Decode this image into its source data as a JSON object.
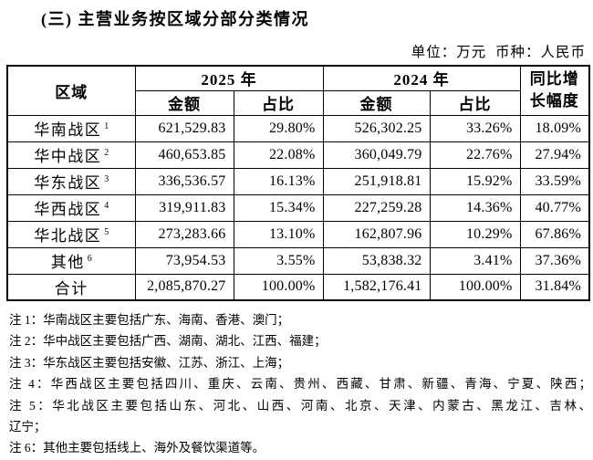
{
  "title": "(三) 主营业务按区域分部分类情况",
  "unit_note": "单位：万元  币种：人民币",
  "table": {
    "headers": {
      "region": "区域",
      "year_2025": "2025 年",
      "year_2024": "2024 年",
      "amount": "金额",
      "ratio": "占比",
      "yoy": "同比增\n长幅度"
    },
    "rows": [
      {
        "region": "华南战区",
        "sup": "1",
        "a25": "621,529.83",
        "r25": "29.80%",
        "a24": "526,302.25",
        "r24": "33.26%",
        "yoy": "18.09%"
      },
      {
        "region": "华中战区",
        "sup": "2",
        "a25": "460,653.85",
        "r25": "22.08%",
        "a24": "360,049.79",
        "r24": "22.76%",
        "yoy": "27.94%"
      },
      {
        "region": "华东战区",
        "sup": "3",
        "a25": "336,536.57",
        "r25": "16.13%",
        "a24": "251,918.81",
        "r24": "15.92%",
        "yoy": "33.59%"
      },
      {
        "region": "华西战区",
        "sup": "4",
        "a25": "319,911.83",
        "r25": "15.34%",
        "a24": "227,259.28",
        "r24": "14.36%",
        "yoy": "40.77%"
      },
      {
        "region": "华北战区",
        "sup": "5",
        "a25": "273,283.66",
        "r25": "13.10%",
        "a24": "162,807.96",
        "r24": "10.29%",
        "yoy": "67.86%"
      },
      {
        "region": "其他",
        "sup": "6",
        "a25": "73,954.53",
        "r25": "3.55%",
        "a24": "53,838.32",
        "r24": "3.41%",
        "yoy": "37.36%"
      },
      {
        "region": "合计",
        "sup": "",
        "a25": "2,085,870.27",
        "r25": "100.00%",
        "a24": "1,582,176.41",
        "r24": "100.00%",
        "yoy": "31.84%"
      }
    ]
  },
  "notes": {
    "lines": [
      "注 1：华南战区主要包括广东、海南、香港、澳门；",
      "注 2：华中战区主要包括广西、湖南、湖北、江西、福建；",
      "注 3：华东战区主要包括安徽、江苏、浙江、上海；",
      "注 4：华西战区主要包括四川、重庆、云南、贵州、西藏、甘肃、新疆、青海、宁夏、陕西；",
      "注 5：华北战区主要包括山东、河北、山西、河南、北京、天津、内蒙古、黑龙江、吉林、",
      "辽宁；",
      "注 6：其他主要包括线上、海外及餐饮渠道等。"
    ]
  }
}
